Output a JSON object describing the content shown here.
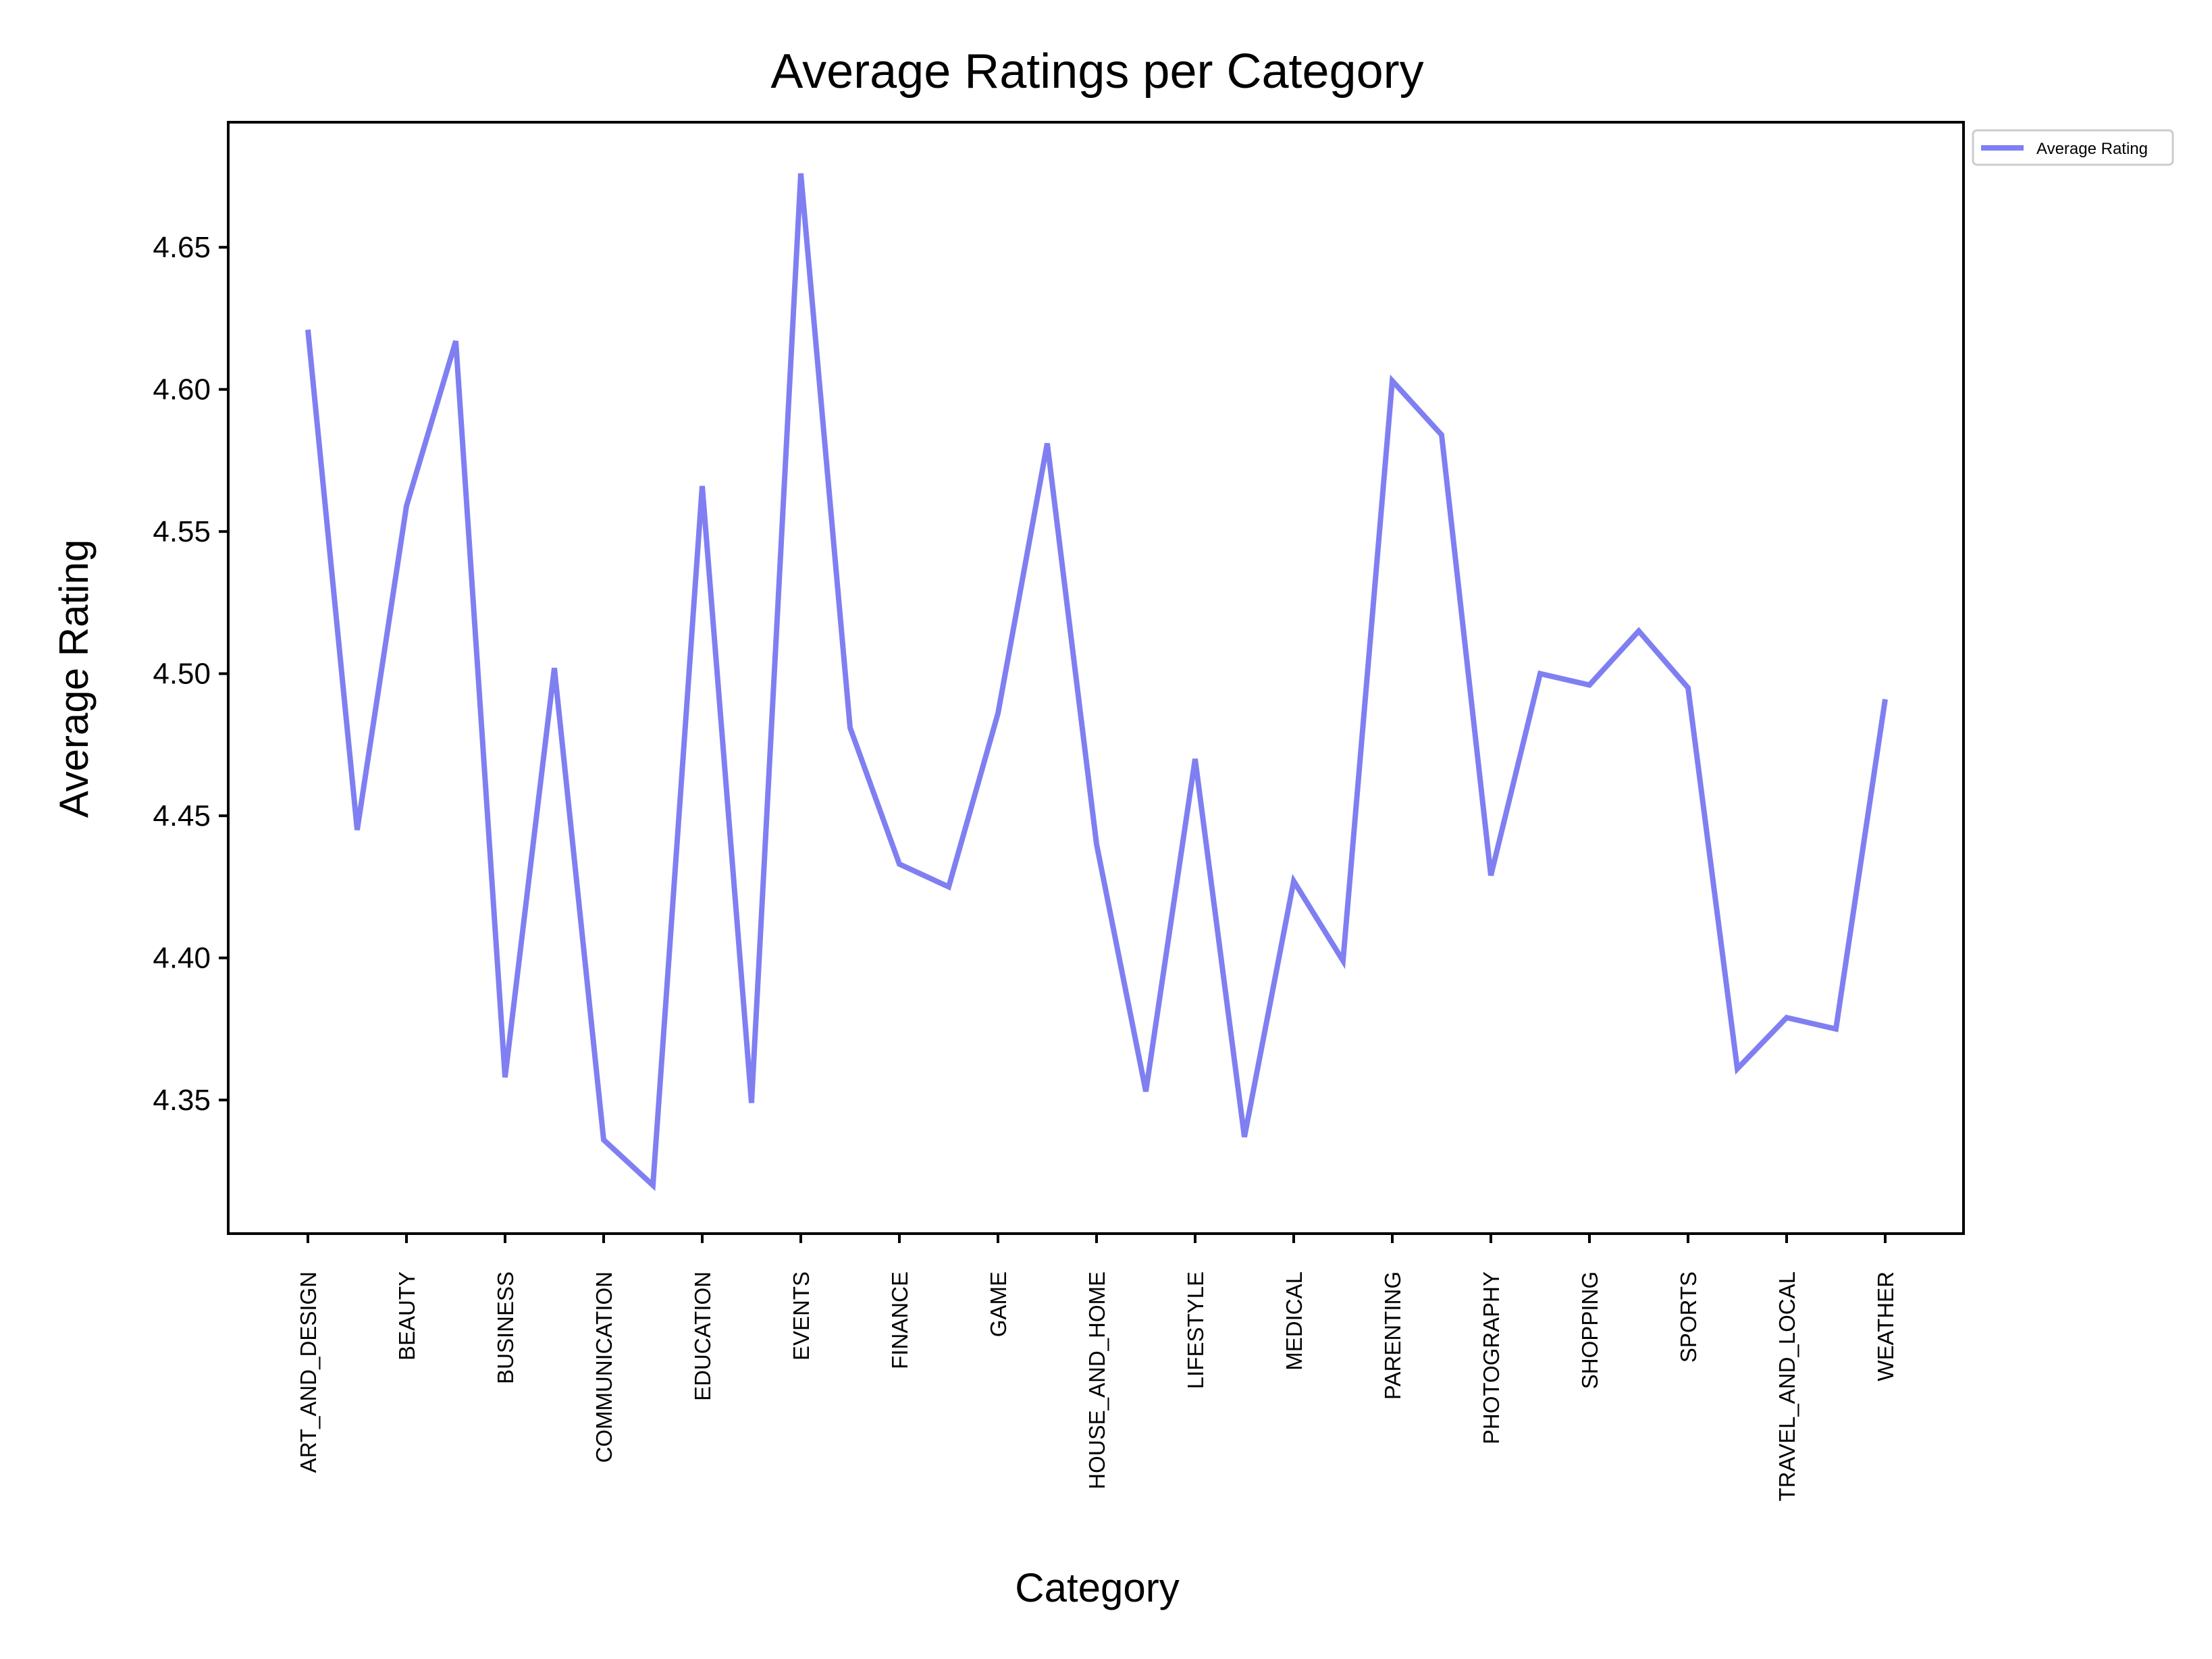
{
  "chart_data": {
    "type": "line",
    "title": "Average Ratings per Category",
    "xlabel": "Category",
    "ylabel": "Average Rating",
    "ylim": [
      4.303,
      4.694
    ],
    "yticks": [
      4.35,
      4.4,
      4.45,
      4.5,
      4.55,
      4.6,
      4.65
    ],
    "ytick_labels": [
      "4.35",
      "4.40",
      "4.45",
      "4.50",
      "4.55",
      "4.60",
      "4.65"
    ],
    "grid": false,
    "legend_position": "outside-top-right",
    "color": "#7F7FF2",
    "xtick_labels": [
      "ART_AND_DESIGN",
      "BEAUTY",
      "BUSINESS",
      "COMMUNICATION",
      "EDUCATION",
      "EVENTS",
      "FINANCE",
      "GAME",
      "HOUSE_AND_HOME",
      "LIFESTYLE",
      "MEDICAL",
      "PARENTING",
      "PHOTOGRAPHY",
      "SHOPPING",
      "SPORTS",
      "TRAVEL_AND_LOCAL",
      "WEATHER"
    ],
    "series": [
      {
        "name": "Average Rating",
        "values": [
          4.621,
          4.445,
          4.559,
          4.617,
          4.358,
          4.502,
          4.336,
          4.32,
          4.566,
          4.349,
          4.676,
          4.481,
          4.433,
          4.425,
          4.486,
          4.581,
          4.44,
          4.353,
          4.47,
          4.337,
          4.427,
          4.399,
          4.603,
          4.584,
          4.429,
          4.5,
          4.496,
          4.515,
          4.495,
          4.361,
          4.379,
          4.375,
          4.491
        ]
      }
    ]
  }
}
